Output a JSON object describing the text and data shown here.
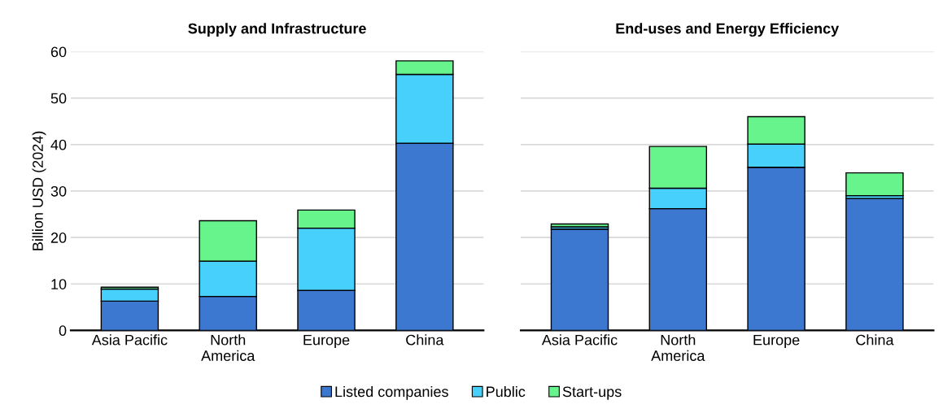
{
  "chart_data": [
    {
      "type": "bar",
      "title": "Supply and Infrastructure",
      "ylabel": "Billion USD (2024)",
      "categories": [
        "Asia Pacific",
        "North\nAmerica",
        "Europe",
        "China"
      ],
      "stacked": true,
      "ylim": [
        0,
        60
      ],
      "yticks": [
        0,
        10,
        20,
        30,
        40,
        50,
        60
      ],
      "grid": "y",
      "legend": "bottom",
      "series": [
        {
          "name": "Listed companies",
          "color": "#3c78d0",
          "values": [
            6.3,
            7.3,
            8.6,
            40.3
          ]
        },
        {
          "name": "Public",
          "color": "#48d0fc",
          "values": [
            2.6,
            7.6,
            13.4,
            14.8
          ]
        },
        {
          "name": "Start-ups",
          "color": "#68f48c",
          "values": [
            0.4,
            8.7,
            3.9,
            2.9
          ]
        }
      ]
    },
    {
      "type": "bar",
      "title": "End-uses and Energy Efficiency",
      "categories": [
        "Asia Pacific",
        "North\nAmerica",
        "Europe",
        "China"
      ],
      "stacked": true,
      "ylim": [
        0,
        60
      ],
      "yticks": [
        0,
        10,
        20,
        30,
        40,
        50,
        60
      ],
      "grid": "y",
      "tick_labels": "x",
      "series": [
        {
          "color": "#3c78d0",
          "values": [
            21.8,
            26.2,
            35.1,
            28.4
          ]
        },
        {
          "color": "#48d0fc",
          "values": [
            0.5,
            4.4,
            5.0,
            0.6
          ]
        },
        {
          "color": "#68f48c",
          "values": [
            0.6,
            9.0,
            5.9,
            4.9
          ]
        }
      ]
    }
  ]
}
